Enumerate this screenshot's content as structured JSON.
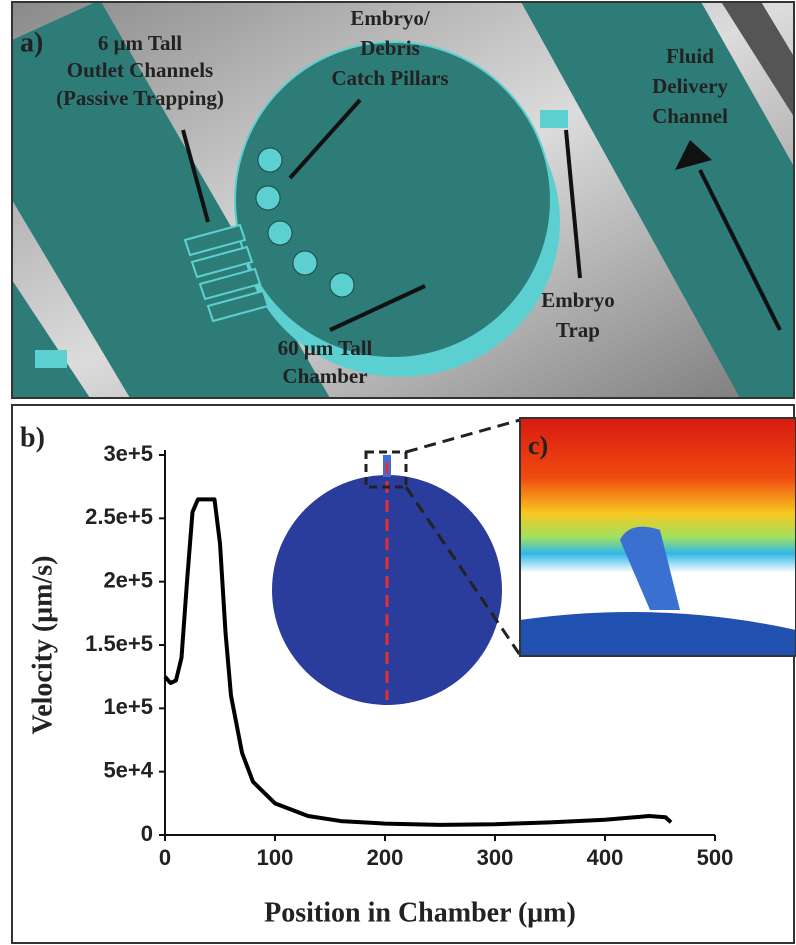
{
  "panel_a": {
    "label": "a)",
    "outlet_label": [
      "6 μm Tall",
      "Outlet Channels",
      "(Passive Trapping)"
    ],
    "pillars_label": [
      "Embryo/",
      "Debris",
      "Catch Pillars"
    ],
    "fluid_label": [
      "Fluid",
      "Delivery",
      "Channel"
    ],
    "trap_label": [
      "Embryo",
      "Trap"
    ],
    "chamber_label": [
      "60 μm Tall",
      "Chamber"
    ]
  },
  "panel_b_label": "b)",
  "panel_c_label": "c)",
  "chart_data": {
    "type": "line",
    "xlabel": "Position in Chamber (μm)",
    "ylabel": "Velocity (μm/s)",
    "x": [
      0,
      5,
      10,
      15,
      20,
      25,
      30,
      45,
      50,
      55,
      60,
      70,
      80,
      100,
      130,
      160,
      200,
      250,
      300,
      350,
      400,
      440,
      455,
      460
    ],
    "values": [
      125000,
      120000,
      122000,
      140000,
      200000,
      255000,
      265000,
      265000,
      230000,
      160000,
      110000,
      65000,
      42000,
      25000,
      15000,
      11000,
      9000,
      8000,
      8500,
      10000,
      12000,
      15000,
      14000,
      10000
    ],
    "color": "#000000",
    "xlim": [
      0,
      500
    ],
    "xticks": [
      0,
      100,
      200,
      300,
      400,
      500
    ],
    "ylim": [
      0,
      300000
    ],
    "yticks": [
      0,
      {
        "value": 50000,
        "label": "5e+4"
      },
      {
        "value": 100000,
        "label": "1e+5"
      },
      {
        "value": 150000,
        "label": "1.5e+5"
      },
      {
        "value": 200000,
        "label": "2e+5"
      },
      {
        "value": 250000,
        "label": "2.5e+5"
      },
      {
        "value": 300000,
        "label": "3e+5"
      }
    ]
  }
}
